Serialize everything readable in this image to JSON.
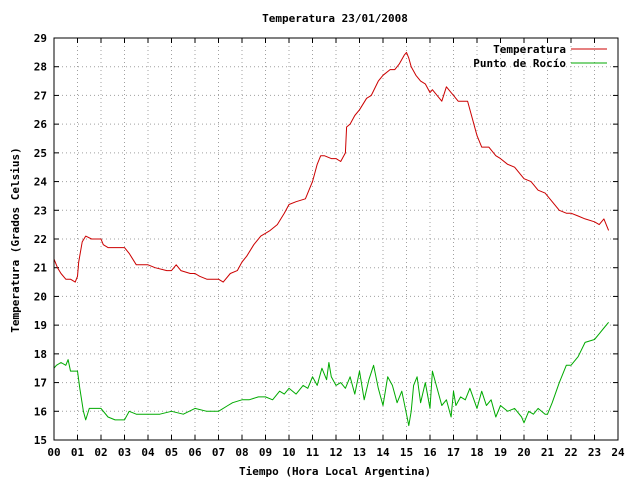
{
  "chart_data": {
    "type": "line",
    "title": "Temperatura 23/01/2008",
    "xlabel": "Tiempo (Hora Local Argentina)",
    "ylabel": "Temperatura (Grados Celsius)",
    "xlim": [
      0,
      24
    ],
    "ylim": [
      15,
      29
    ],
    "x_ticks": [
      "00",
      "01",
      "02",
      "03",
      "04",
      "05",
      "06",
      "07",
      "08",
      "09",
      "10",
      "11",
      "12",
      "13",
      "14",
      "15",
      "16",
      "17",
      "18",
      "19",
      "20",
      "21",
      "22",
      "23",
      "24"
    ],
    "y_ticks": [
      "15",
      "16",
      "17",
      "18",
      "19",
      "20",
      "21",
      "22",
      "23",
      "24",
      "25",
      "26",
      "27",
      "28",
      "29"
    ],
    "grid": true,
    "legend_position": "top-right",
    "series": [
      {
        "name": "Temperatura",
        "color": "#cc0000",
        "x": [
          0.0,
          0.15,
          0.3,
          0.5,
          0.7,
          0.9,
          1.0,
          1.05,
          1.2,
          1.35,
          1.6,
          2.0,
          2.1,
          2.3,
          2.6,
          3.0,
          3.2,
          3.5,
          4.0,
          4.3,
          4.8,
          5.0,
          5.2,
          5.4,
          5.8,
          6.0,
          6.2,
          6.5,
          7.0,
          7.2,
          7.5,
          7.8,
          8.0,
          8.2,
          8.5,
          8.8,
          9.0,
          9.2,
          9.5,
          9.8,
          10.0,
          10.3,
          10.7,
          11.0,
          11.2,
          11.35,
          11.5,
          11.8,
          12.0,
          12.2,
          12.4,
          12.45,
          12.6,
          12.8,
          13.0,
          13.3,
          13.5,
          13.8,
          14.0,
          14.3,
          14.5,
          14.7,
          14.9,
          15.0,
          15.1,
          15.2,
          15.4,
          15.6,
          15.8,
          16.0,
          16.1,
          16.3,
          16.5,
          16.7,
          16.9,
          17.0,
          17.2,
          17.4,
          17.6,
          17.8,
          18.0,
          18.2,
          18.5,
          18.8,
          19.0,
          19.3,
          19.6,
          20.0,
          20.3,
          20.6,
          20.9,
          21.2,
          21.5,
          21.8,
          22.0,
          22.3,
          22.6,
          23.0,
          23.2,
          23.4,
          23.6
        ],
        "y": [
          21.3,
          21.0,
          20.8,
          20.6,
          20.6,
          20.5,
          20.7,
          21.2,
          21.9,
          22.1,
          22.0,
          22.0,
          21.8,
          21.7,
          21.7,
          21.7,
          21.5,
          21.1,
          21.1,
          21.0,
          20.9,
          20.9,
          21.1,
          20.9,
          20.8,
          20.8,
          20.7,
          20.6,
          20.6,
          20.5,
          20.8,
          20.9,
          21.2,
          21.4,
          21.8,
          22.1,
          22.2,
          22.3,
          22.5,
          22.9,
          23.2,
          23.3,
          23.4,
          24.0,
          24.6,
          24.9,
          24.9,
          24.8,
          24.8,
          24.7,
          25.0,
          25.9,
          26.0,
          26.3,
          26.5,
          26.9,
          27.0,
          27.5,
          27.7,
          27.9,
          27.9,
          28.1,
          28.4,
          28.5,
          28.3,
          28.0,
          27.7,
          27.5,
          27.4,
          27.1,
          27.2,
          27.0,
          26.8,
          27.3,
          27.1,
          27.0,
          26.8,
          26.8,
          26.8,
          26.2,
          25.6,
          25.2,
          25.2,
          24.9,
          24.8,
          24.6,
          24.5,
          24.1,
          24.0,
          23.7,
          23.6,
          23.3,
          23.0,
          22.9,
          22.9,
          22.8,
          22.7,
          22.6,
          22.5,
          22.7,
          22.3
        ]
      },
      {
        "name": "Punto de Rocío",
        "color": "#00aa00",
        "x": [
          0.0,
          0.1,
          0.3,
          0.5,
          0.6,
          0.7,
          1.0,
          1.1,
          1.25,
          1.35,
          1.5,
          1.8,
          2.0,
          2.3,
          2.6,
          3.0,
          3.2,
          3.5,
          4.0,
          4.5,
          5.0,
          5.5,
          6.0,
          6.5,
          7.0,
          7.4,
          7.6,
          8.0,
          8.3,
          8.7,
          9.0,
          9.3,
          9.6,
          9.8,
          10.0,
          10.3,
          10.6,
          10.8,
          11.0,
          11.2,
          11.4,
          11.6,
          11.7,
          11.8,
          12.0,
          12.2,
          12.4,
          12.6,
          12.8,
          13.0,
          13.2,
          13.4,
          13.6,
          13.8,
          14.0,
          14.2,
          14.4,
          14.6,
          14.8,
          15.0,
          15.1,
          15.2,
          15.3,
          15.45,
          15.6,
          15.8,
          16.0,
          16.1,
          16.3,
          16.5,
          16.7,
          16.9,
          17.0,
          17.1,
          17.3,
          17.5,
          17.7,
          18.0,
          18.2,
          18.4,
          18.6,
          18.8,
          19.0,
          19.3,
          19.6,
          19.9,
          20.0,
          20.2,
          20.4,
          20.6,
          20.9,
          21.0,
          21.2,
          21.5,
          21.8,
          22.0,
          22.3,
          22.6,
          23.0,
          23.2,
          23.4,
          23.6
        ],
        "y": [
          17.5,
          17.6,
          17.7,
          17.6,
          17.8,
          17.4,
          17.4,
          16.8,
          16.0,
          15.7,
          16.1,
          16.1,
          16.1,
          15.8,
          15.7,
          15.7,
          16.0,
          15.9,
          15.9,
          15.9,
          16.0,
          15.9,
          16.1,
          16.0,
          16.0,
          16.2,
          16.3,
          16.4,
          16.4,
          16.5,
          16.5,
          16.4,
          16.7,
          16.6,
          16.8,
          16.6,
          16.9,
          16.8,
          17.2,
          16.9,
          17.5,
          17.1,
          17.7,
          17.2,
          16.9,
          17.0,
          16.8,
          17.2,
          16.6,
          17.4,
          16.4,
          17.1,
          17.6,
          16.8,
          16.2,
          17.2,
          16.9,
          16.3,
          16.7,
          15.9,
          15.5,
          16.0,
          16.9,
          17.2,
          16.3,
          17.0,
          16.1,
          17.4,
          16.8,
          16.2,
          16.4,
          15.8,
          16.7,
          16.2,
          16.5,
          16.4,
          16.8,
          16.1,
          16.7,
          16.2,
          16.4,
          15.8,
          16.2,
          16.0,
          16.1,
          15.8,
          15.6,
          16.0,
          15.9,
          16.1,
          15.9,
          15.9,
          16.3,
          17.0,
          17.6,
          17.6,
          17.9,
          18.4,
          18.5,
          18.7,
          18.9,
          19.1
        ]
      }
    ]
  }
}
